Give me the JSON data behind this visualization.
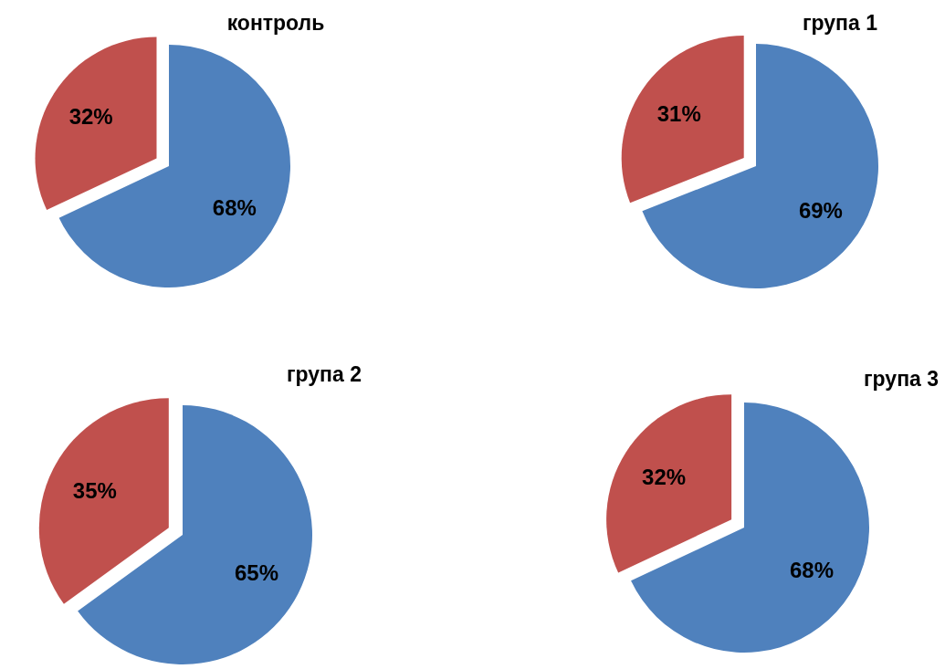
{
  "chart_data": [
    {
      "type": "pie",
      "title": "контроль",
      "categories": [
        null,
        null
      ],
      "values": [
        68,
        32
      ],
      "colors": [
        "#4f81bd",
        "#c0504d"
      ],
      "value_labels": [
        "68%",
        "32%"
      ]
    },
    {
      "type": "pie",
      "title": "група 1",
      "categories": [
        null,
        null
      ],
      "values": [
        69,
        31
      ],
      "colors": [
        "#4f81bd",
        "#c0504d"
      ],
      "value_labels": [
        "69%",
        "31%"
      ]
    },
    {
      "type": "pie",
      "title": "група 2",
      "categories": [
        null,
        null
      ],
      "values": [
        65,
        35
      ],
      "colors": [
        "#4f81bd",
        "#c0504d"
      ],
      "value_labels": [
        "65%",
        "35%"
      ]
    },
    {
      "type": "pie",
      "title": "група 3",
      "categories": [
        null,
        null
      ],
      "values": [
        68,
        32
      ],
      "colors": [
        "#4f81bd",
        "#c0504d"
      ],
      "value_labels": [
        "68%",
        "32%"
      ]
    }
  ]
}
